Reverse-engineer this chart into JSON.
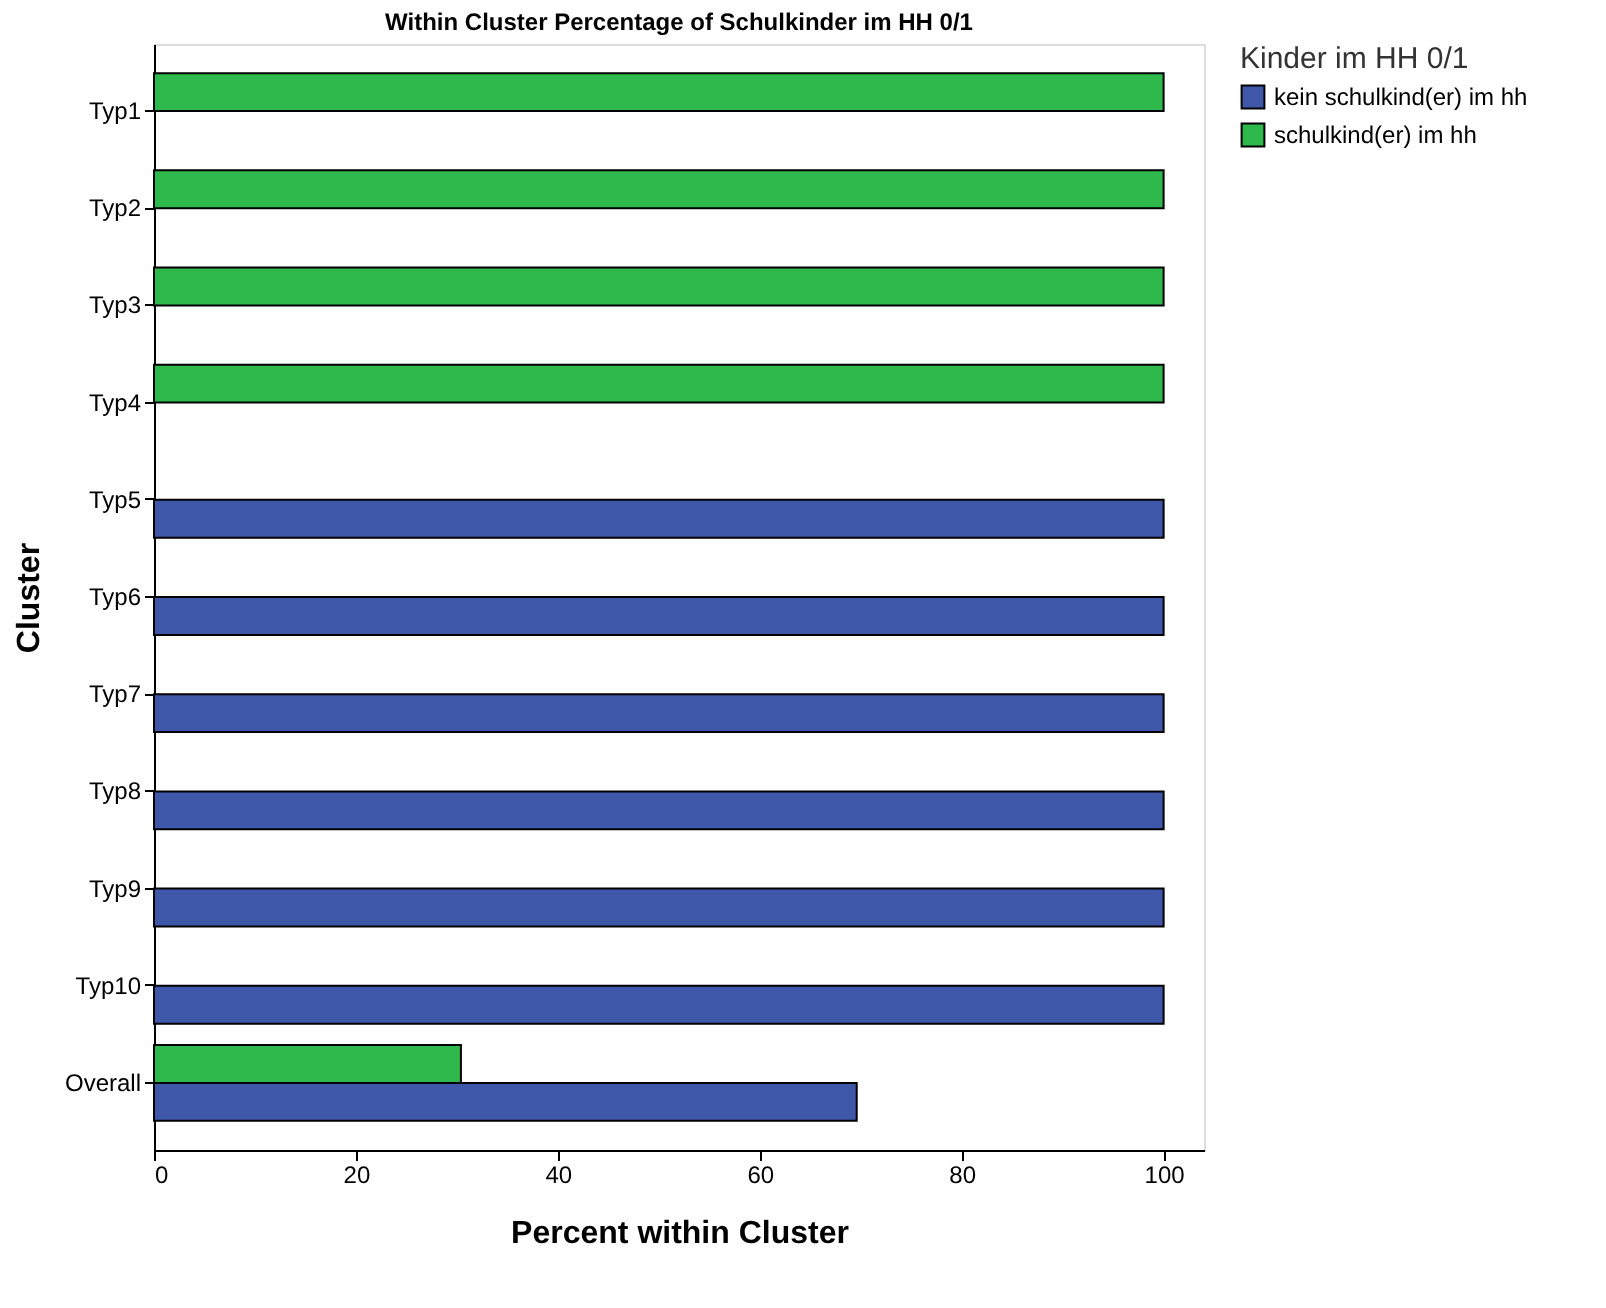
{
  "chart_data": {
    "type": "bar",
    "orientation": "horizontal",
    "title": "Within Cluster Percentage of Schulkinder im HH 0/1",
    "xlabel": "Percent within Cluster",
    "ylabel": "Cluster",
    "legend_title": "Kinder im HH 0/1",
    "legend": "top right",
    "categories": [
      "Typ1",
      "Typ2",
      "Typ3",
      "Typ4",
      "Typ5",
      "Typ6",
      "Typ7",
      "Typ8",
      "Typ9",
      "Typ10",
      "Overall"
    ],
    "series": [
      {
        "name": "kein schulkind(er) im hh",
        "color": "#3f57a8",
        "values": [
          null,
          null,
          null,
          null,
          100,
          100,
          100,
          100,
          100,
          100,
          69.6
        ]
      },
      {
        "name": "schulkind(er) im hh",
        "color": "#2fb84b",
        "values": [
          100,
          100,
          100,
          100,
          null,
          null,
          null,
          null,
          null,
          null,
          30.4
        ]
      }
    ],
    "xlim": [
      0,
      104
    ],
    "xticks": [
      0,
      20,
      40,
      60,
      80,
      100
    ],
    "grid": false
  }
}
